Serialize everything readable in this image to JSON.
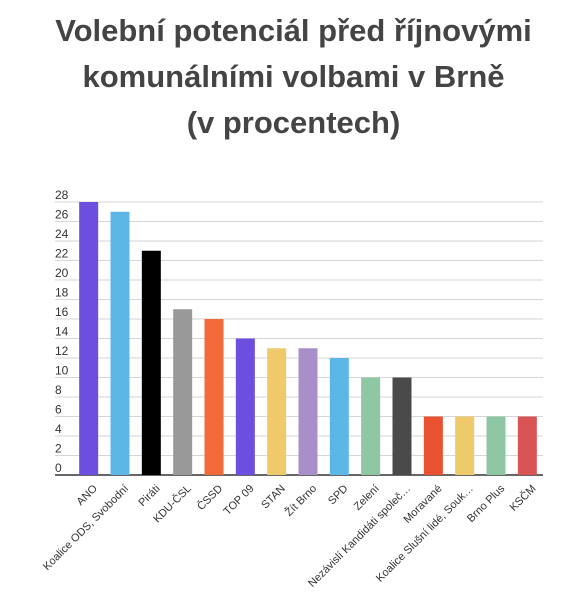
{
  "title_lines": [
    "Volební potenciál před říjnovými",
    "komunálními volbami v Brně",
    "(v procentech)"
  ],
  "chart_data": {
    "type": "bar",
    "title": "Volební potenciál před říjnovými komunálními volbami v Brně (v procentech)",
    "xlabel": "",
    "ylabel": "",
    "ylim": [
      0,
      28
    ],
    "yticks": [
      0,
      2,
      4,
      6,
      8,
      10,
      12,
      14,
      16,
      18,
      20,
      22,
      24,
      26,
      28
    ],
    "grid": true,
    "categories": [
      "ANO",
      "Koalice ODS, Svobodní",
      "Piráti",
      "KDU-ČSL",
      "ČSSD",
      "TOP 09",
      "STAN",
      "Žít Brno",
      "SPD",
      "Zelení",
      "Nezávislí Kandidáti společ…",
      "Moravané",
      "Koalice Slušní lidé, Souk…",
      "Brno Plus",
      "KSČM"
    ],
    "values": [
      28,
      27,
      23,
      17,
      16,
      14,
      13,
      13,
      12,
      10,
      10,
      6,
      6,
      6,
      6
    ],
    "colors": [
      "#6d4fe0",
      "#5cb6e6",
      "#000000",
      "#999999",
      "#f36a3a",
      "#6d4fe0",
      "#efca6b",
      "#a98fc9",
      "#5cb6e6",
      "#8fc7a5",
      "#4a4a4a",
      "#e85230",
      "#efca6b",
      "#8fc7a5",
      "#d95454"
    ]
  }
}
